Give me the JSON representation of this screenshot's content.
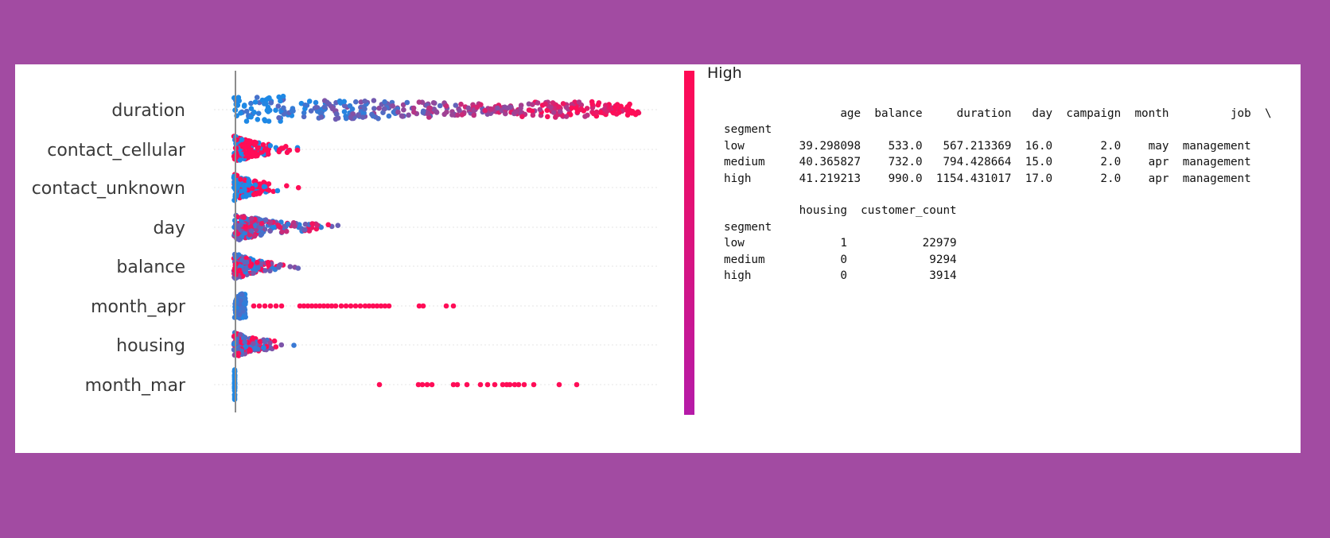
{
  "chart_data": {
    "type": "scatter",
    "subtype": "beeswarm",
    "features": [
      "duration",
      "contact_cellular",
      "contact_unknown",
      "day",
      "balance",
      "month_apr",
      "housing",
      "month_mar"
    ],
    "colorbar": {
      "high_label": "High",
      "low_color": "#b51ba8",
      "high_color": "#ff0a54"
    },
    "point_colors": {
      "low": "#1e88e5",
      "high": "#ff0d57"
    },
    "grid": true,
    "legend": "right"
  },
  "dataframe": {
    "block1": {
      "columns": [
        "age",
        "balance",
        "duration",
        "day",
        "campaign",
        "month",
        "job"
      ],
      "continuation": "\\",
      "index_name": "segment",
      "rows": [
        {
          "index": "low",
          "values": [
            "39.298098",
            "533.0",
            "567.213369",
            "16.0",
            "2.0",
            "may",
            "management"
          ]
        },
        {
          "index": "medium",
          "values": [
            "40.365827",
            "732.0",
            "794.428664",
            "15.0",
            "2.0",
            "apr",
            "management"
          ]
        },
        {
          "index": "high",
          "values": [
            "41.219213",
            "990.0",
            "1154.431017",
            "17.0",
            "2.0",
            "apr",
            "management"
          ]
        }
      ]
    },
    "block2": {
      "columns": [
        "housing",
        "customer_count"
      ],
      "index_name": "segment",
      "rows": [
        {
          "index": "low",
          "values": [
            "1",
            "22979"
          ]
        },
        {
          "index": "medium",
          "values": [
            "0",
            "9294"
          ]
        },
        {
          "index": "high",
          "values": [
            "0",
            "3914"
          ]
        }
      ]
    }
  }
}
